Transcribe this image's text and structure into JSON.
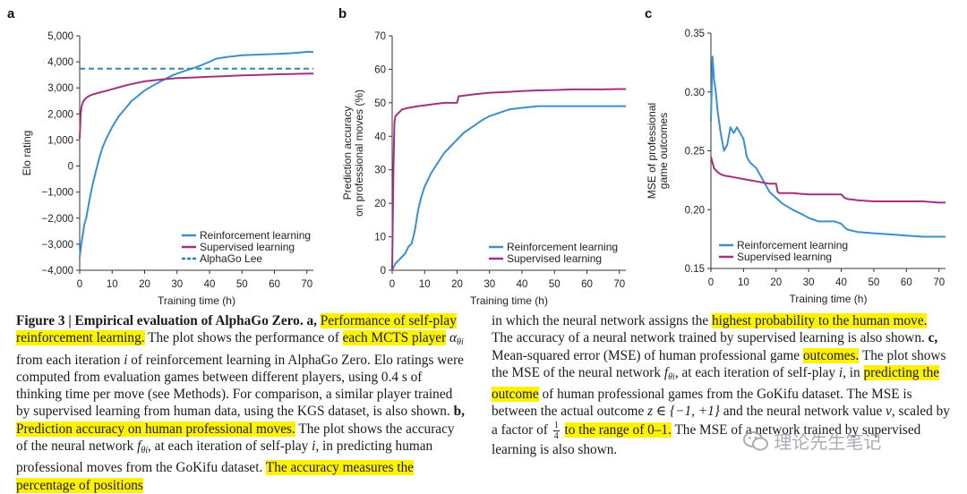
{
  "chart_data": [
    {
      "panel": "a",
      "type": "line",
      "title": "",
      "xlabel": "Training time (h)",
      "ylabel": "Elo rating",
      "xlim": [
        0,
        72
      ],
      "ylim": [
        -4000,
        5000
      ],
      "xticks": [
        0,
        10,
        20,
        30,
        40,
        50,
        60,
        70
      ],
      "yticks": [
        -4000,
        -3000,
        -2000,
        -1000,
        0,
        1000,
        2000,
        3000,
        4000,
        5000
      ],
      "ytick_labels": [
        "−4,000",
        "−3,000",
        "−2,000",
        "−1,000",
        "0",
        "1,000",
        "2,000",
        "3,000",
        "4,000",
        "5,000"
      ],
      "legend": "bottom-right",
      "series": [
        {
          "name": "Reinforcement learning",
          "color": "#3a8fd0",
          "style": "solid",
          "x": [
            0,
            0.5,
            1,
            1.5,
            2,
            3,
            4,
            5,
            6,
            7,
            8,
            9,
            10,
            12,
            14,
            16,
            18,
            20,
            22,
            25,
            28,
            30,
            33,
            36,
            38,
            40,
            42,
            45,
            50,
            55,
            60,
            65,
            70,
            72
          ],
          "y": [
            -3500,
            -3000,
            -2600,
            -2200,
            -2000,
            -1300,
            -700,
            -200,
            300,
            700,
            1000,
            1250,
            1500,
            1900,
            2200,
            2500,
            2700,
            2900,
            3050,
            3250,
            3450,
            3550,
            3680,
            3800,
            3900,
            4000,
            4120,
            4180,
            4250,
            4280,
            4300,
            4330,
            4380,
            4380
          ]
        },
        {
          "name": "Supervised learning",
          "color": "#a3317f",
          "style": "solid",
          "x": [
            0,
            0.3,
            0.6,
            1,
            1.5,
            2,
            3,
            4,
            5,
            6,
            8,
            10,
            12,
            15,
            20,
            25,
            30,
            35,
            40,
            45,
            50,
            55,
            60,
            65,
            70,
            72
          ],
          "y": [
            1050,
            2000,
            2300,
            2450,
            2550,
            2620,
            2700,
            2750,
            2780,
            2820,
            2880,
            2950,
            3020,
            3120,
            3250,
            3320,
            3380,
            3400,
            3430,
            3450,
            3480,
            3500,
            3520,
            3530,
            3550,
            3550
          ]
        },
        {
          "name": "AlphaGo Lee",
          "color": "#2d86b8",
          "style": "dashed",
          "x": [
            0,
            72
          ],
          "y": [
            3739,
            3739
          ]
        }
      ]
    },
    {
      "panel": "b",
      "type": "line",
      "title": "",
      "xlabel": "Training time (h)",
      "ylabel": "Prediction accuracy on professional moves (%)",
      "ylabel_lines": [
        "Prediction accuracy",
        "on professional moves (%)"
      ],
      "xlim": [
        0,
        72
      ],
      "ylim": [
        0,
        70
      ],
      "xticks": [
        0,
        10,
        20,
        30,
        40,
        50,
        60,
        70
      ],
      "yticks": [
        0,
        10,
        20,
        30,
        40,
        50,
        60,
        70
      ],
      "ytick_labels": [
        "0",
        "10",
        "20",
        "30",
        "40",
        "50",
        "60",
        "70"
      ],
      "legend": "bottom-right",
      "series": [
        {
          "name": "Reinforcement learning",
          "color": "#3a8fd0",
          "style": "solid",
          "x": [
            0,
            1,
            2,
            3,
            4,
            5,
            6,
            7,
            8,
            9,
            10,
            12,
            14,
            16,
            18,
            20,
            22,
            25,
            28,
            30,
            33,
            36,
            40,
            45,
            50,
            55,
            60,
            65,
            70,
            72
          ],
          "y": [
            0,
            2,
            3,
            4,
            5,
            7,
            8,
            12,
            18,
            22,
            25,
            29,
            32,
            35,
            37,
            39,
            41,
            43,
            45,
            46,
            47,
            48,
            48.5,
            49,
            49,
            49,
            49,
            49,
            49,
            49
          ]
        },
        {
          "name": "Supervised learning",
          "color": "#a3317f",
          "style": "solid",
          "x": [
            0,
            0.4,
            0.7,
            1,
            2,
            3,
            5,
            8,
            12,
            16,
            20,
            20.5,
            21,
            25,
            30,
            35,
            40,
            45,
            50,
            55,
            60,
            65,
            70,
            72
          ],
          "y": [
            0,
            30,
            44,
            46,
            47,
            48,
            48.5,
            49,
            49.5,
            50,
            50,
            52,
            52,
            52.5,
            53,
            53.2,
            53.5,
            53.7,
            53.8,
            54,
            54,
            54,
            54.1,
            54.1
          ]
        }
      ]
    },
    {
      "panel": "c",
      "type": "line",
      "title": "",
      "xlabel": "Training time (h)",
      "ylabel": "MSE of professional game outcomes",
      "ylabel_lines": [
        "MSE of professional",
        "game outcomes"
      ],
      "xlim": [
        0,
        72
      ],
      "ylim": [
        0.15,
        0.35
      ],
      "xticks": [
        0,
        10,
        20,
        30,
        40,
        50,
        60,
        70
      ],
      "yticks": [
        0.15,
        0.2,
        0.25,
        0.3,
        0.35
      ],
      "ytick_labels": [
        "0.15",
        "0.20",
        "0.25",
        "0.30",
        "0.35"
      ],
      "legend": "bottom-left",
      "series": [
        {
          "name": "Reinforcement learning",
          "color": "#3a8fd0",
          "style": "solid",
          "x": [
            0,
            0.5,
            1,
            1.5,
            2,
            3,
            4,
            5,
            6,
            7,
            8,
            10,
            11,
            12,
            14,
            16,
            18,
            20,
            22,
            25,
            28,
            30,
            33,
            36,
            38,
            40,
            41,
            42,
            45,
            50,
            55,
            60,
            65,
            70,
            72
          ],
          "y": [
            0.275,
            0.33,
            0.31,
            0.3,
            0.285,
            0.265,
            0.25,
            0.255,
            0.27,
            0.265,
            0.27,
            0.26,
            0.245,
            0.24,
            0.235,
            0.225,
            0.215,
            0.21,
            0.205,
            0.2,
            0.196,
            0.193,
            0.19,
            0.19,
            0.19,
            0.188,
            0.185,
            0.183,
            0.181,
            0.18,
            0.179,
            0.178,
            0.177,
            0.177,
            0.177
          ]
        },
        {
          "name": "Supervised learning",
          "color": "#a3317f",
          "style": "solid",
          "x": [
            0,
            0.5,
            1,
            2,
            3,
            4,
            6,
            8,
            10,
            12,
            14,
            16,
            18,
            20,
            20.5,
            21,
            25,
            30,
            35,
            40,
            41,
            42,
            45,
            50,
            55,
            60,
            65,
            70,
            72
          ],
          "y": [
            0.245,
            0.24,
            0.235,
            0.232,
            0.23,
            0.229,
            0.228,
            0.227,
            0.226,
            0.225,
            0.224,
            0.223,
            0.222,
            0.222,
            0.215,
            0.214,
            0.214,
            0.213,
            0.213,
            0.213,
            0.21,
            0.209,
            0.208,
            0.207,
            0.207,
            0.207,
            0.207,
            0.206,
            0.206
          ]
        }
      ]
    }
  ],
  "panels": {
    "a": {
      "letter": "a"
    },
    "b": {
      "letter": "b"
    },
    "c": {
      "letter": "c"
    }
  },
  "caption": {
    "figure_label": "Figure 3 | Empirical evaluation of AlphaGo Zero.",
    "a_letter": "a,",
    "a_hl1": "Performance of self-play reinforcement learning.",
    "a_t1": "The plot shows the performance of",
    "a_hl2": "each MCTS player",
    "a_sym": "α",
    "a_sub": "θi",
    "a_t2": "from each iteration",
    "a_i1": "i",
    "a_t3": "of reinforcement learning in AlphaGo Zero. Elo ratings were computed from evaluation games between different players, using 0.4 s of thinking time per move (see Methods). For comparison, a similar player trained by supervised learning from human data, using the KGS dataset, is also shown.",
    "b_letter": "b,",
    "b_hl1": "Prediction accuracy on human professional moves.",
    "b_t1": "The plot shows the accuracy of the neural network",
    "b_sym": "f",
    "b_sub": "θi",
    "b_t2": ", at each iteration of self-play",
    "b_i1": "i",
    "b_t3": ", in predicting human professional moves from the GoKifu dataset.",
    "b_hl2": "The accuracy measures the percentage of positions",
    "b_t4": "in which the neural network assigns the",
    "b_hl3": "highest probability to the human move.",
    "b_t5": "The accuracy of a neural network trained by supervised learning is also shown.",
    "c_letter": "c,",
    "c_t1": "Mean-squared error (MSE) of human professional game",
    "c_hl1": "outcomes.",
    "c_t2": "The plot shows the MSE of the neural network",
    "c_sym": "f",
    "c_sub": "θi",
    "c_t3": ", at each iteration of self-play",
    "c_i1": "i",
    "c_t4": ", in",
    "c_hl2": "predicting the outcome",
    "c_t5": "of human professional games from the GoKifu dataset. The MSE is between the actual outcome",
    "c_z": "z ∈ {−1, +1}",
    "c_t6": "and the neural network value",
    "c_v": "v",
    "c_t7": ", scaled by a factor of",
    "c_frac_num": "1",
    "c_frac_den": "4",
    "c_hl3": "to the range of 0–1.",
    "c_t8": "The MSE of a network trained by supervised learning is also shown."
  },
  "watermark": {
    "text": "理论先生笔记",
    "icon": "wechat-icon"
  }
}
